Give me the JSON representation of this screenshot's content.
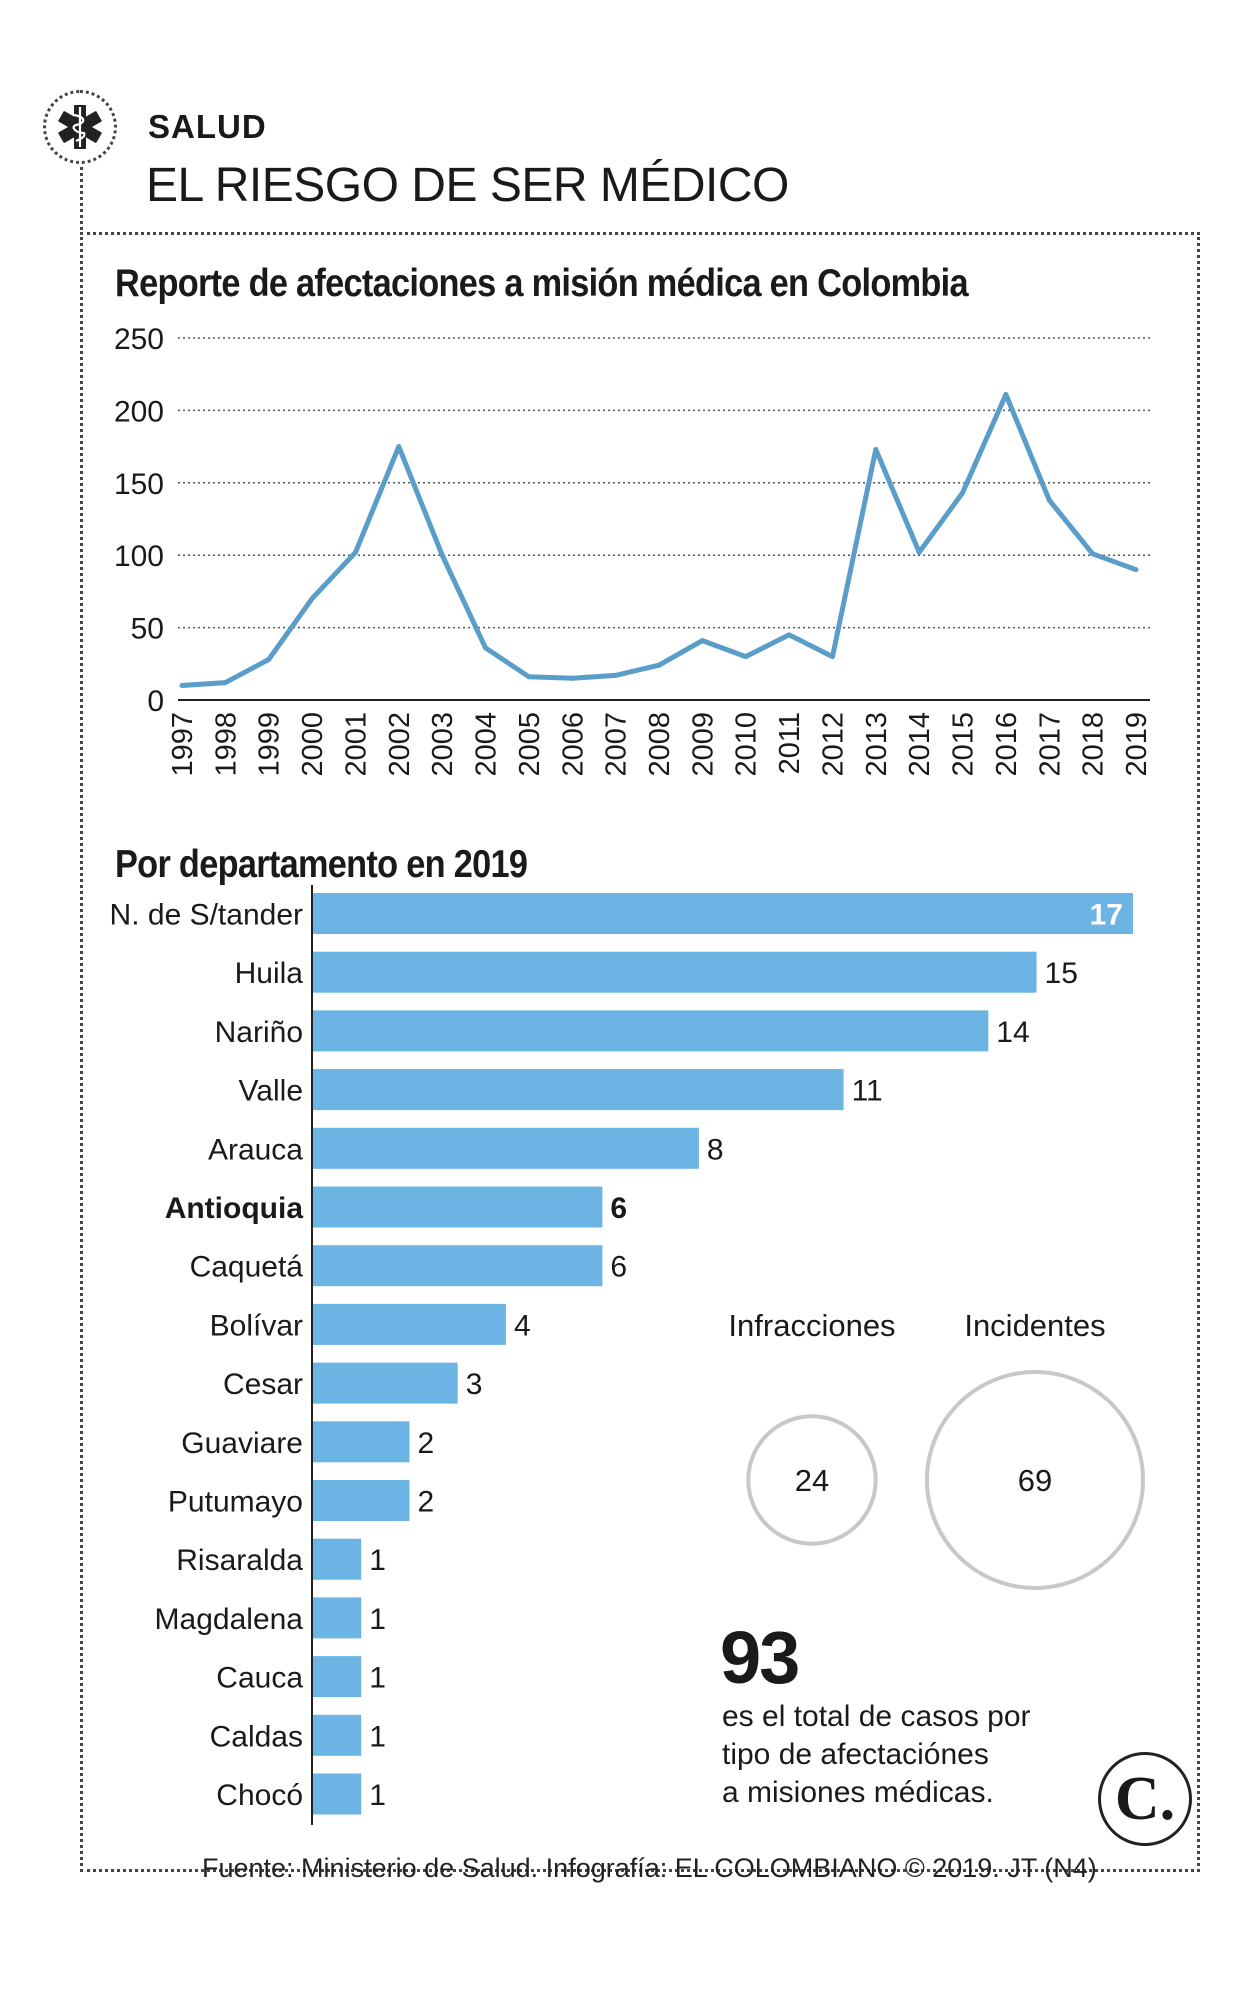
{
  "header": {
    "section": "SALUD",
    "title": "EL RIESGO DE SER MÉDICO",
    "badge_icon": "medical-star-icon"
  },
  "colors": {
    "line": "#5b9dc9",
    "bar": "#6cb4e4",
    "grid": "#555555",
    "bubble_stroke": "#c8c8c8"
  },
  "chart_data": [
    {
      "type": "line",
      "title": "Reporte de afectaciones a misión médica en Colombia",
      "xlabel": "",
      "ylabel": "",
      "x": [
        "1997",
        "1998",
        "1999",
        "2000",
        "2001",
        "2002",
        "2003",
        "2004",
        "2005",
        "2006",
        "2007",
        "2008",
        "2009",
        "2010",
        "2011",
        "2012",
        "2013",
        "2014",
        "2015",
        "2016",
        "2017",
        "2018",
        "2019"
      ],
      "values": [
        10,
        12,
        28,
        70,
        102,
        175,
        100,
        36,
        16,
        15,
        17,
        24,
        41,
        30,
        45,
        30,
        173,
        102,
        143,
        211,
        138,
        101,
        90
      ],
      "ylim": [
        0,
        250
      ],
      "yticks": [
        250,
        200,
        150,
        100,
        50,
        0
      ],
      "grid": true
    },
    {
      "type": "bar",
      "orientation": "horizontal",
      "title": "Por departamento en 2019",
      "categories": [
        "N. de S/tander",
        "Huila",
        "Nariño",
        "Valle",
        "Arauca",
        "Antioquia",
        "Caquetá",
        "Bolívar",
        "Cesar",
        "Guaviare",
        "Putumayo",
        "Risaralda",
        "Magdalena",
        "Cauca",
        "Caldas",
        "Chocó"
      ],
      "values": [
        17,
        15,
        14,
        11,
        8,
        6,
        6,
        4,
        3,
        2,
        2,
        1,
        1,
        1,
        1,
        1
      ],
      "highlight": "Antioquia",
      "xlim": [
        0,
        17
      ]
    },
    {
      "type": "bubble",
      "categories": [
        "Infracciones",
        "Incidentes"
      ],
      "values": [
        24,
        69
      ]
    }
  ],
  "summary": {
    "total": "93",
    "lines": [
      "es el total de casos por",
      "tipo de afectaciónes",
      "a misiones médicas."
    ]
  },
  "footer": {
    "source": "Fuente: Ministerio de Salud. Infografía: EL COLOMBIANO © 2019. JT (N4)",
    "logo": "C."
  }
}
